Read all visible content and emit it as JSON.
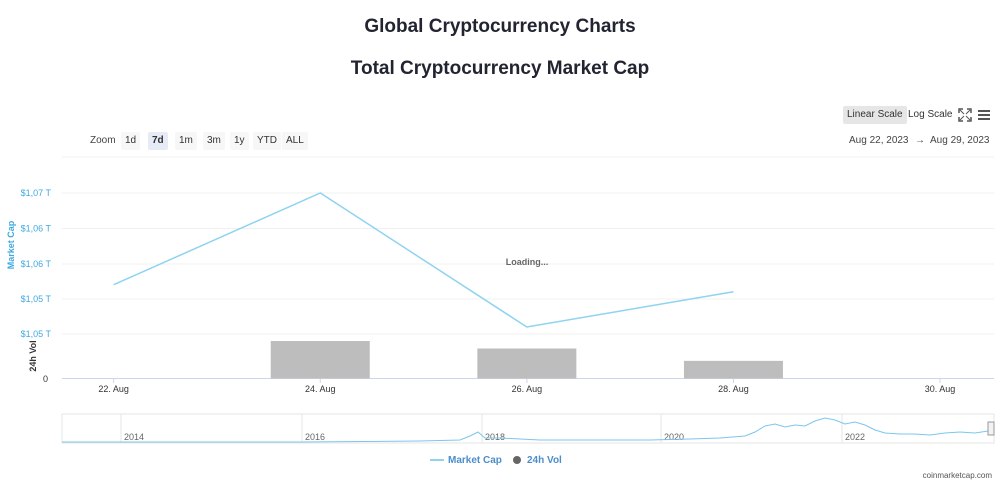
{
  "page_title": "Global Cryptocurrency Charts",
  "chart_title": "Total Cryptocurrency Market Cap",
  "toolbar": {
    "linear_scale": "Linear Scale",
    "log_scale": "Log Scale",
    "fullscreen_icon": "fullscreen-icon",
    "menu_icon": "hamburger-menu-icon"
  },
  "zoom": {
    "label": "Zoom",
    "buttons": [
      "1d",
      "7d",
      "1m",
      "3m",
      "1y",
      "YTD",
      "ALL"
    ],
    "selected": "7d"
  },
  "range": {
    "from": "Aug 22, 2023",
    "arrow": "→",
    "to": "Aug 29, 2023"
  },
  "loading_text": "Loading...",
  "legend": {
    "market_cap": "Market Cap",
    "vol": "24h Vol"
  },
  "credits": "coinmarketcap.com",
  "colors": {
    "market_cap": "#8fd3f0",
    "vol_bar": "#bdbdbd",
    "axis_label": "#3fa9e0",
    "navigator": "#7cc6ee"
  },
  "chart_data": {
    "type": "line",
    "title": "Total Cryptocurrency Market Cap",
    "x_ticks": [
      "22. Aug",
      "24. Aug",
      "26. Aug",
      "28. Aug",
      "30. Aug"
    ],
    "y_ticks": [
      "$1,07 T",
      "$1,06 T",
      "$1,06 T",
      "$1,05 T",
      "$1,05 T"
    ],
    "ylabel": "Market Cap",
    "ylabel2": "24h Vol",
    "vol_ticks": [
      "0"
    ],
    "grid": true,
    "legend_position": "bottom-center",
    "series": [
      {
        "name": "Market Cap",
        "type": "line",
        "x": [
          "2023-08-22",
          "2023-08-24",
          "2023-08-26",
          "2023-08-28"
        ],
        "values": [
          1.057,
          1.07,
          1.051,
          1.056
        ]
      },
      {
        "name": "24h Vol",
        "type": "bar",
        "x": [
          "2023-08-24",
          "2023-08-26",
          "2023-08-28"
        ],
        "values": [
          1.0,
          0.8,
          0.47
        ]
      }
    ],
    "navigator_years": [
      "2014",
      "2016",
      "2018",
      "2020",
      "2022"
    ]
  }
}
